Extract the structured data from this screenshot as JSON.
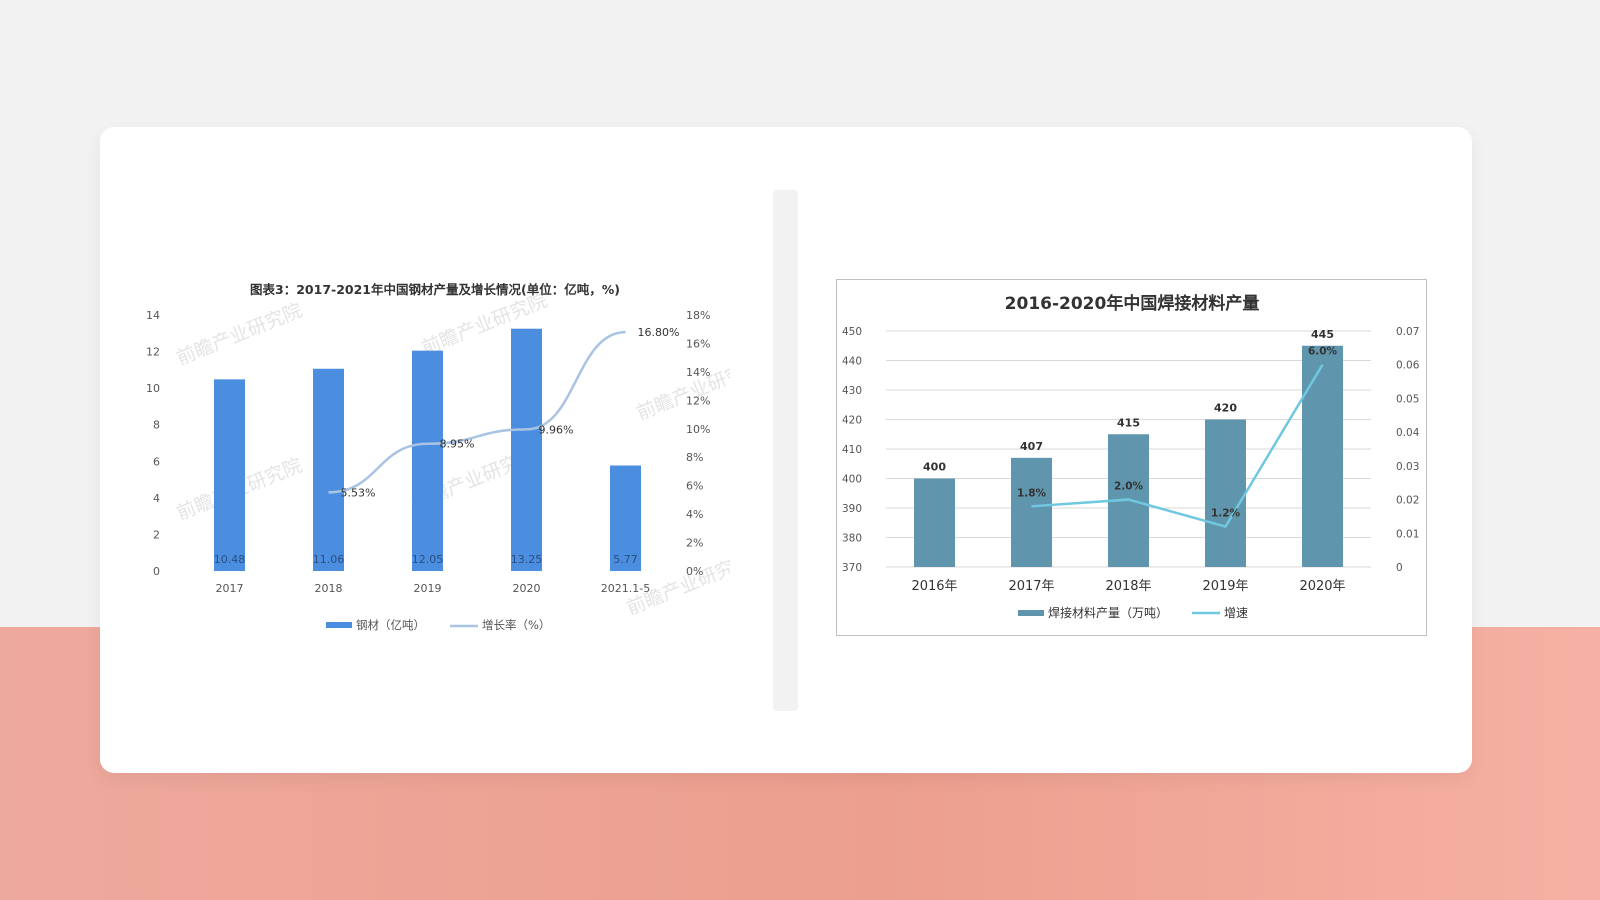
{
  "colors": {
    "card": "#ffffff",
    "steel_bar": "#4b8ee0",
    "steel_line": "#a9c4e2",
    "weld_bar": "#6096ad",
    "weld_line": "#6fc8e0",
    "watermark": "#e4e4e4"
  },
  "watermark_text": "前瞻产业研究院",
  "chart_data": [
    {
      "type": "bar",
      "title": "图表3：2017-2021年中国钢材产量及增长情况(单位：亿吨，%)",
      "categories": [
        "2017",
        "2018",
        "2019",
        "2020",
        "2021.1-5"
      ],
      "series": [
        {
          "name": "钢材（亿吨）",
          "type": "bar",
          "values": [
            10.48,
            11.06,
            12.05,
            13.25,
            5.77
          ],
          "labels": [
            "10.48",
            "11.06",
            "12.05",
            "13.25",
            "5.77"
          ]
        },
        {
          "name": "增长率（%）",
          "type": "line",
          "axis": "right",
          "values": [
            null,
            5.53,
            8.95,
            9.96,
            16.8
          ],
          "labels": [
            "",
            "5.53%",
            "8.95%",
            "9.96%",
            "16.80%"
          ]
        }
      ],
      "y_left": {
        "min": 0,
        "max": 14,
        "ticks": [
          "0",
          "2",
          "4",
          "6",
          "8",
          "10",
          "12",
          "14"
        ]
      },
      "y_right": {
        "min": 0,
        "max": 18,
        "ticks": [
          "0%",
          "2%",
          "4%",
          "6%",
          "8%",
          "10%",
          "12%",
          "14%",
          "16%",
          "18%"
        ]
      },
      "grid": false,
      "legend": "bottom"
    },
    {
      "type": "bar",
      "title": "2016-2020年中国焊接材料产量",
      "categories": [
        "2016年",
        "2017年",
        "2018年",
        "2019年",
        "2020年"
      ],
      "series": [
        {
          "name": "焊接材料产量（万吨）",
          "type": "bar",
          "values": [
            400,
            407,
            415,
            420,
            445
          ],
          "labels": [
            "400",
            "407",
            "415",
            "420",
            "445"
          ]
        },
        {
          "name": "增速",
          "type": "line",
          "axis": "right",
          "values": [
            null,
            0.018,
            0.02,
            0.012,
            0.06
          ],
          "labels": [
            "",
            "1.8%",
            "2.0%",
            "1.2%",
            "6.0%"
          ]
        }
      ],
      "y_left": {
        "min": 370,
        "max": 450,
        "ticks": [
          "370",
          "380",
          "390",
          "400",
          "410",
          "420",
          "430",
          "440",
          "450"
        ]
      },
      "y_right": {
        "min": 0,
        "max": 0.07,
        "ticks": [
          "0",
          "0.01",
          "0.02",
          "0.03",
          "0.04",
          "0.05",
          "0.06",
          "0.07"
        ]
      },
      "grid": true,
      "legend": "bottom"
    }
  ]
}
